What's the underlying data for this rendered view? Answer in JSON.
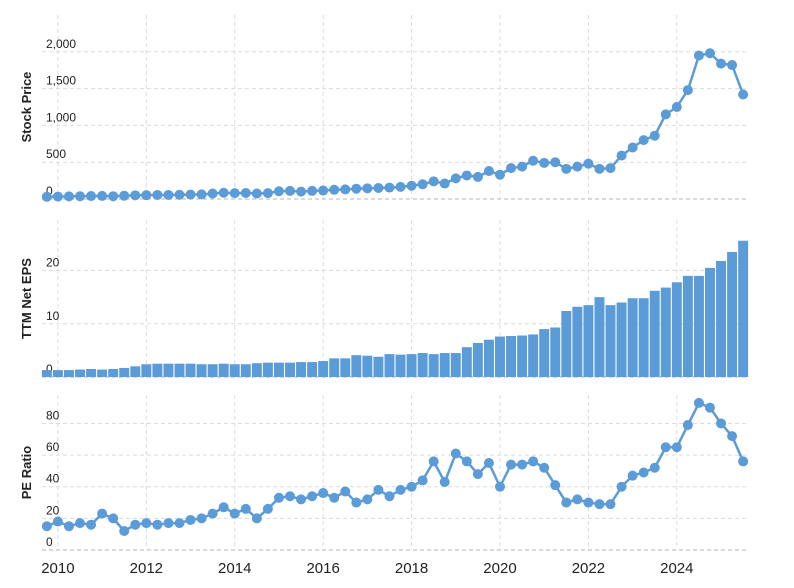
{
  "chart_data": [
    {
      "type": "line",
      "y_label": "Stock Price",
      "color": "#5b9bd8",
      "x": [
        2009.75,
        2010,
        2010.25,
        2010.5,
        2010.75,
        2011,
        2011.25,
        2011.5,
        2011.75,
        2012,
        2012.25,
        2012.5,
        2012.75,
        2013,
        2013.25,
        2013.5,
        2013.75,
        2014,
        2014.25,
        2014.5,
        2014.75,
        2015,
        2015.25,
        2015.5,
        2015.75,
        2016,
        2016.25,
        2016.5,
        2016.75,
        2017,
        2017.25,
        2017.5,
        2017.75,
        2018,
        2018.25,
        2018.5,
        2018.75,
        2019,
        2019.25,
        2019.5,
        2019.75,
        2020,
        2020.25,
        2020.5,
        2020.75,
        2021,
        2021.25,
        2021.5,
        2021.75,
        2022,
        2022.25,
        2022.5,
        2022.75,
        2023,
        2023.25,
        2023.5,
        2023.75,
        2024,
        2024.25,
        2024.5,
        2024.75,
        2025,
        2025.25,
        2025.5
      ],
      "values": [
        30,
        33,
        36,
        38,
        40,
        42,
        38,
        45,
        50,
        52,
        55,
        55,
        58,
        60,
        62,
        75,
        85,
        80,
        82,
        75,
        80,
        105,
        110,
        100,
        110,
        115,
        125,
        130,
        140,
        145,
        150,
        155,
        165,
        180,
        200,
        240,
        210,
        280,
        320,
        300,
        380,
        330,
        420,
        440,
        520,
        490,
        500,
        410,
        440,
        480,
        410,
        420,
        590,
        700,
        800,
        860,
        1150,
        1250,
        1480,
        1950,
        1980,
        1840,
        1820,
        1420
      ],
      "xlim": [
        2009.64,
        2025.61
      ],
      "ylim": [
        0,
        2500
      ],
      "yticks": [
        0,
        500,
        {
          "value": 1000,
          "label": "1,000"
        },
        {
          "value": 1500,
          "label": "1,500"
        },
        {
          "value": 2000,
          "label": "2,000"
        }
      ]
    },
    {
      "type": "bar",
      "y_label": "TTM Net EPS",
      "color": "#5b9bd8",
      "x": [
        2009.75,
        2010,
        2010.25,
        2010.5,
        2010.75,
        2011,
        2011.25,
        2011.5,
        2011.75,
        2012,
        2012.25,
        2012.5,
        2012.75,
        2013,
        2013.25,
        2013.5,
        2013.75,
        2014,
        2014.25,
        2014.5,
        2014.75,
        2015,
        2015.25,
        2015.5,
        2015.75,
        2016,
        2016.25,
        2016.5,
        2016.75,
        2017,
        2017.25,
        2017.5,
        2017.75,
        2018,
        2018.25,
        2018.5,
        2018.75,
        2019,
        2019.25,
        2019.5,
        2019.75,
        2020,
        2020.25,
        2020.5,
        2020.75,
        2021,
        2021.25,
        2021.5,
        2021.75,
        2022,
        2022.25,
        2022.5,
        2022.75,
        2023,
        2023.25,
        2023.5,
        2023.75,
        2024,
        2024.25,
        2024.5,
        2024.75,
        2025,
        2025.25,
        2025.5
      ],
      "values": [
        1.3,
        1.3,
        1.3,
        1.4,
        1.5,
        1.4,
        1.5,
        1.7,
        2.0,
        2.4,
        2.5,
        2.5,
        2.5,
        2.5,
        2.4,
        2.4,
        2.5,
        2.4,
        2.4,
        2.6,
        2.7,
        2.7,
        2.7,
        2.8,
        2.8,
        3.0,
        3.5,
        3.5,
        4.1,
        4.0,
        3.8,
        4.3,
        4.2,
        4.3,
        4.5,
        4.3,
        4.5,
        4.5,
        5.6,
        6.4,
        7.0,
        7.6,
        7.7,
        7.8,
        8.0,
        9.0,
        9.3,
        12.4,
        13.2,
        13.5,
        15.0,
        13.5,
        14.0,
        14.8,
        14.8,
        16.2,
        16.8,
        17.8,
        19.0,
        19.0,
        20.5,
        21.8,
        23.5,
        25.6
      ],
      "xlim": [
        2009.64,
        2025.61
      ],
      "ylim": [
        0,
        29.5
      ],
      "yticks": [
        0,
        10,
        20
      ]
    },
    {
      "type": "line",
      "y_label": "PE Ratio",
      "color": "#5b9bd8",
      "x": [
        2009.75,
        2010,
        2010.25,
        2010.5,
        2010.75,
        2011,
        2011.25,
        2011.5,
        2011.75,
        2012,
        2012.25,
        2012.5,
        2012.75,
        2013,
        2013.25,
        2013.5,
        2013.75,
        2014,
        2014.25,
        2014.5,
        2014.75,
        2015,
        2015.25,
        2015.5,
        2015.75,
        2016,
        2016.25,
        2016.5,
        2016.75,
        2017,
        2017.25,
        2017.5,
        2017.75,
        2018,
        2018.25,
        2018.5,
        2018.75,
        2019,
        2019.25,
        2019.5,
        2019.75,
        2020,
        2020.25,
        2020.5,
        2020.75,
        2021,
        2021.25,
        2021.5,
        2021.75,
        2022,
        2022.25,
        2022.5,
        2022.75,
        2023,
        2023.25,
        2023.5,
        2023.75,
        2024,
        2024.25,
        2024.5,
        2024.75,
        2025,
        2025.25,
        2025.5
      ],
      "values": [
        15,
        18,
        15,
        17,
        16,
        23,
        20,
        12,
        16,
        17,
        16,
        17,
        17,
        19,
        20,
        23,
        27,
        23,
        26,
        20,
        26,
        33,
        34,
        32,
        34,
        36,
        33,
        37,
        30,
        32,
        38,
        34,
        38,
        40,
        44,
        56,
        43,
        61,
        56,
        48,
        55,
        40,
        54,
        54,
        56,
        52,
        41,
        30,
        32,
        30,
        29,
        29,
        40,
        47,
        49,
        52,
        65,
        65,
        79,
        93,
        90,
        80,
        72,
        56
      ],
      "xlim": [
        2009.64,
        2025.61
      ],
      "ylim": [
        0,
        98
      ],
      "yticks": [
        0,
        20,
        40,
        60,
        80
      ],
      "xticks": [
        2010,
        2012,
        2014,
        2016,
        2018,
        2020,
        2022,
        2024
      ]
    }
  ]
}
